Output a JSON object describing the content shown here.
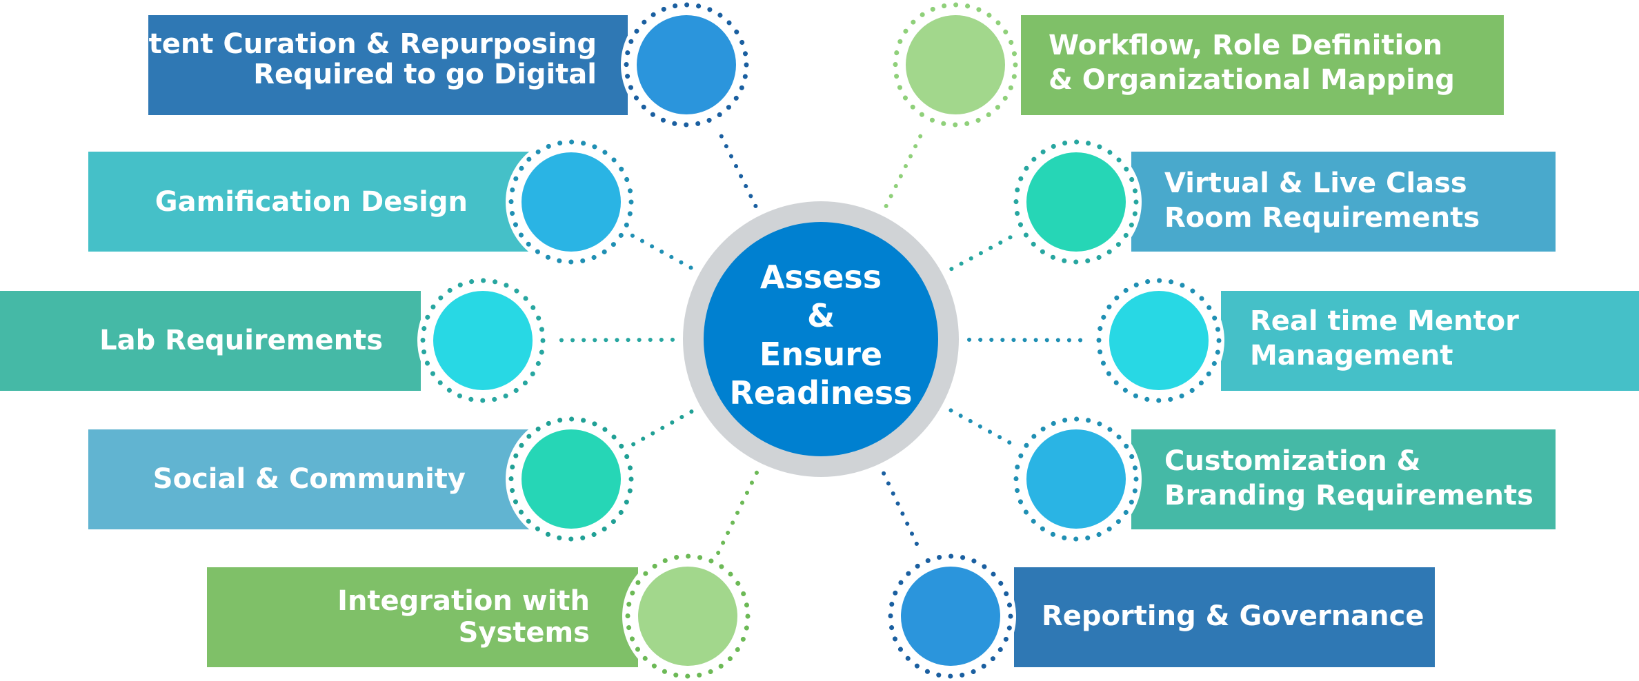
{
  "center": {
    "lines": [
      "Assess",
      "&",
      "Ensure",
      "Readiness"
    ],
    "color": "#0080d0",
    "ring_color": "#d0d3d6"
  },
  "items": [
    {
      "id": "content-curation",
      "lines": [
        "Content Curation & Repurposing",
        "Required to go Digital"
      ],
      "bar_color": "#2f78b4",
      "dot_color": "#2b95dc",
      "ring_color": "#1a5fa0"
    },
    {
      "id": "gamification-design",
      "lines": [
        "Gamification Design"
      ],
      "bar_color": "#45c0c8",
      "dot_color": "#2ab4e4",
      "ring_color": "#1f8fb3"
    },
    {
      "id": "lab-requirements",
      "lines": [
        "Lab Requirements"
      ],
      "bar_color": "#45b9a6",
      "dot_color": "#28d8e4",
      "ring_color": "#27a6a0"
    },
    {
      "id": "social-community",
      "lines": [
        "Social & Community"
      ],
      "bar_color": "#61b4d1",
      "dot_color": "#26d6b6",
      "ring_color": "#20a095"
    },
    {
      "id": "integration-systems",
      "lines": [
        "Integration with",
        "Systems"
      ],
      "bar_color": "#7fc068",
      "dot_color": "#a2d78c",
      "ring_color": "#6cb956"
    },
    {
      "id": "workflow-role",
      "lines": [
        "Workflow, Role Definition",
        "& Organizational Mapping"
      ],
      "bar_color": "#7fc068",
      "dot_color": "#a2d78c",
      "ring_color": "#8fd07a"
    },
    {
      "id": "virtual-live-class",
      "lines": [
        "Virtual & Live Class",
        "Room Requirements"
      ],
      "bar_color": "#49a9cc",
      "dot_color": "#26d6b6",
      "ring_color": "#27a6a0"
    },
    {
      "id": "real-time-mentor",
      "lines": [
        "Real time Mentor",
        "Management"
      ],
      "bar_color": "#45c0c8",
      "dot_color": "#28d8e4",
      "ring_color": "#1f8fb3"
    },
    {
      "id": "customization-branding",
      "lines": [
        "Customization &",
        "Branding Requirements"
      ],
      "bar_color": "#45b9a6",
      "dot_color": "#2ab4e4",
      "ring_color": "#1f8fb3"
    },
    {
      "id": "reporting-governance",
      "lines": [
        "Reporting & Governance"
      ],
      "bar_color": "#2f78b4",
      "dot_color": "#2b95dc",
      "ring_color": "#1a5fa0"
    }
  ]
}
